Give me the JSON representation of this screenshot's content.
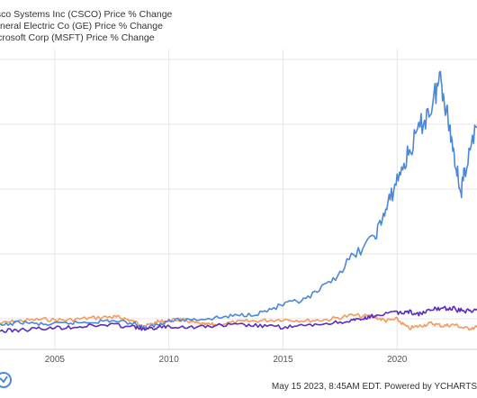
{
  "chart_data": {
    "type": "line",
    "title": "",
    "xlabel": "",
    "ylabel": "",
    "x_ticks": [
      "2005",
      "2010",
      "2015",
      "2020"
    ],
    "xlim": [
      2002.6,
      2023.5
    ],
    "ylim": [
      -100,
      1050
    ],
    "grid": true,
    "legend_position": "top-left",
    "series": [
      {
        "name": "Cisco Systems Inc (CSCO) Price % Change",
        "color": "#f59a5c",
        "x": [
          2002.6,
          2003.5,
          2004.5,
          2005.5,
          2006.5,
          2007.5,
          2008.0,
          2008.5,
          2009.0,
          2009.5,
          2010.0,
          2010.5,
          2011.0,
          2011.5,
          2012.0,
          2013.0,
          2014.0,
          2015.0,
          2016.0,
          2017.0,
          2018.0,
          2019.0,
          2019.5,
          2020.0,
          2020.5,
          2021.0,
          2021.5,
          2022.0,
          2022.5,
          2023.0,
          2023.5
        ],
        "y": [
          0,
          10,
          15,
          12,
          20,
          25,
          20,
          5,
          -10,
          5,
          10,
          15,
          5,
          -5,
          -5,
          5,
          10,
          15,
          10,
          15,
          30,
          25,
          10,
          15,
          -20,
          -10,
          0,
          -10,
          -5,
          -20,
          -15
        ]
      },
      {
        "name": "General Electric Co (GE) Price % Change",
        "color": "#4a88d9",
        "x": [
          2002.6,
          2003.5,
          2004.5,
          2005.5,
          2006.5,
          2007.5,
          2008.5,
          2009.0,
          2009.5,
          2010.0,
          2011.0,
          2012.0,
          2013.0,
          2014.0,
          2015.0,
          2016.0,
          2017.0,
          2018.0,
          2019.0,
          2019.5,
          2020.0,
          2020.5,
          2021.0,
          2021.5,
          2021.9,
          2022.2,
          2022.5,
          2022.8,
          2023.0,
          2023.5
        ],
        "y": [
          -10,
          5,
          -5,
          0,
          5,
          10,
          0,
          -20,
          -5,
          10,
          15,
          20,
          30,
          40,
          70,
          90,
          150,
          250,
          330,
          430,
          550,
          650,
          750,
          830,
          950,
          800,
          650,
          500,
          600,
          750
        ]
      },
      {
        "name": "Microsoft Corp (MSFT) Price % Change",
        "color": "#5b2bc4",
        "x": [
          2002.6,
          2003.5,
          2004.5,
          2005.5,
          2006.5,
          2007.5,
          2008.5,
          2009.0,
          2009.5,
          2010.0,
          2011.0,
          2012.0,
          2013.0,
          2014.0,
          2015.0,
          2016.0,
          2017.0,
          2018.0,
          2018.5,
          2019.0,
          2020.0,
          2020.5,
          2021.0,
          2021.5,
          2022.0,
          2022.5,
          2023.0,
          2023.5
        ],
        "y": [
          -30,
          -25,
          -20,
          -15,
          -10,
          -5,
          -15,
          -25,
          -15,
          -10,
          -15,
          -10,
          -5,
          -10,
          -15,
          -10,
          0,
          10,
          15,
          30,
          40,
          45,
          35,
          50,
          60,
          55,
          45,
          55
        ]
      }
    ]
  },
  "legend": {
    "items": [
      {
        "label": "Cisco Systems Inc (CSCO) Price % Change",
        "color": "#f59a5c"
      },
      {
        "label": "General Electric Co (GE) Price % Change",
        "color": "#4a88d9"
      },
      {
        "label": "Microsoft Corp (MSFT) Price % Change",
        "color": "#5b2bc4"
      }
    ]
  },
  "footer": {
    "text": "May 15 2023, 8:45AM EDT. Powered by YCHARTS"
  }
}
